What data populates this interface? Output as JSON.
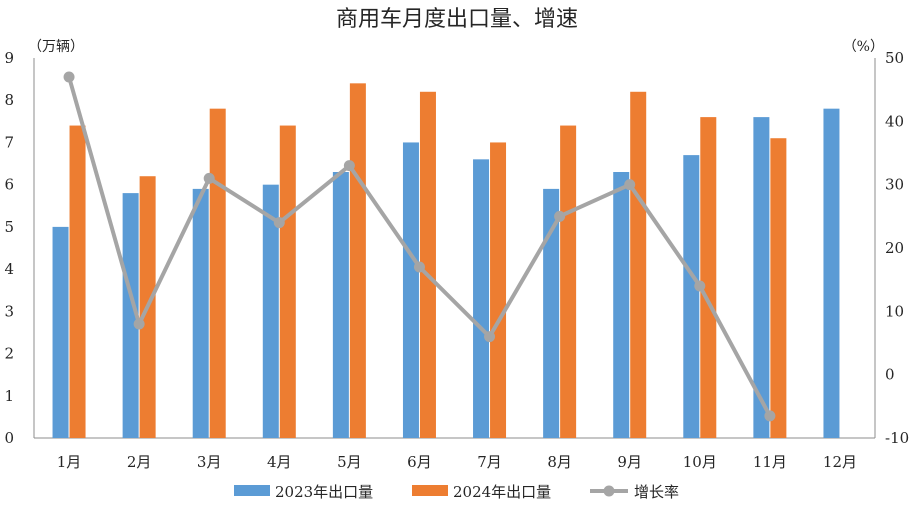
{
  "chart_data": {
    "type": "bar",
    "title": "商用车月度出口量、增速",
    "y_left_unit": "（万辆）",
    "y_right_unit": "（%）",
    "ylim": [
      0,
      9
    ],
    "y2lim": [
      -10,
      50
    ],
    "y_ticks": [
      "0",
      "1",
      "2",
      "3",
      "4",
      "5",
      "6",
      "7",
      "8",
      "9"
    ],
    "y2_ticks": [
      "-10",
      "0",
      "10",
      "20",
      "30",
      "40",
      "50"
    ],
    "categories": [
      "1月",
      "2月",
      "3月",
      "4月",
      "5月",
      "6月",
      "7月",
      "8月",
      "9月",
      "10月",
      "11月",
      "12月"
    ],
    "series": [
      {
        "name": "2023年出口量",
        "kind": "bar",
        "axis": "left",
        "color": "#5B9BD5",
        "values": [
          5.0,
          5.8,
          5.9,
          6.0,
          6.3,
          7.0,
          6.6,
          5.9,
          6.3,
          6.7,
          7.6,
          7.8
        ]
      },
      {
        "name": "2024年出口量",
        "kind": "bar",
        "axis": "left",
        "color": "#ED7D31",
        "values": [
          7.4,
          6.2,
          7.8,
          7.4,
          8.4,
          8.2,
          7.0,
          7.4,
          8.2,
          7.6,
          7.1,
          null
        ]
      },
      {
        "name": "增长率",
        "kind": "line",
        "axis": "right",
        "color": "#A5A5A5",
        "values": [
          47,
          8,
          31,
          24,
          33,
          17,
          6,
          25,
          30,
          14,
          -6.5,
          null
        ]
      }
    ],
    "legend_position": "bottom",
    "grid": false
  }
}
